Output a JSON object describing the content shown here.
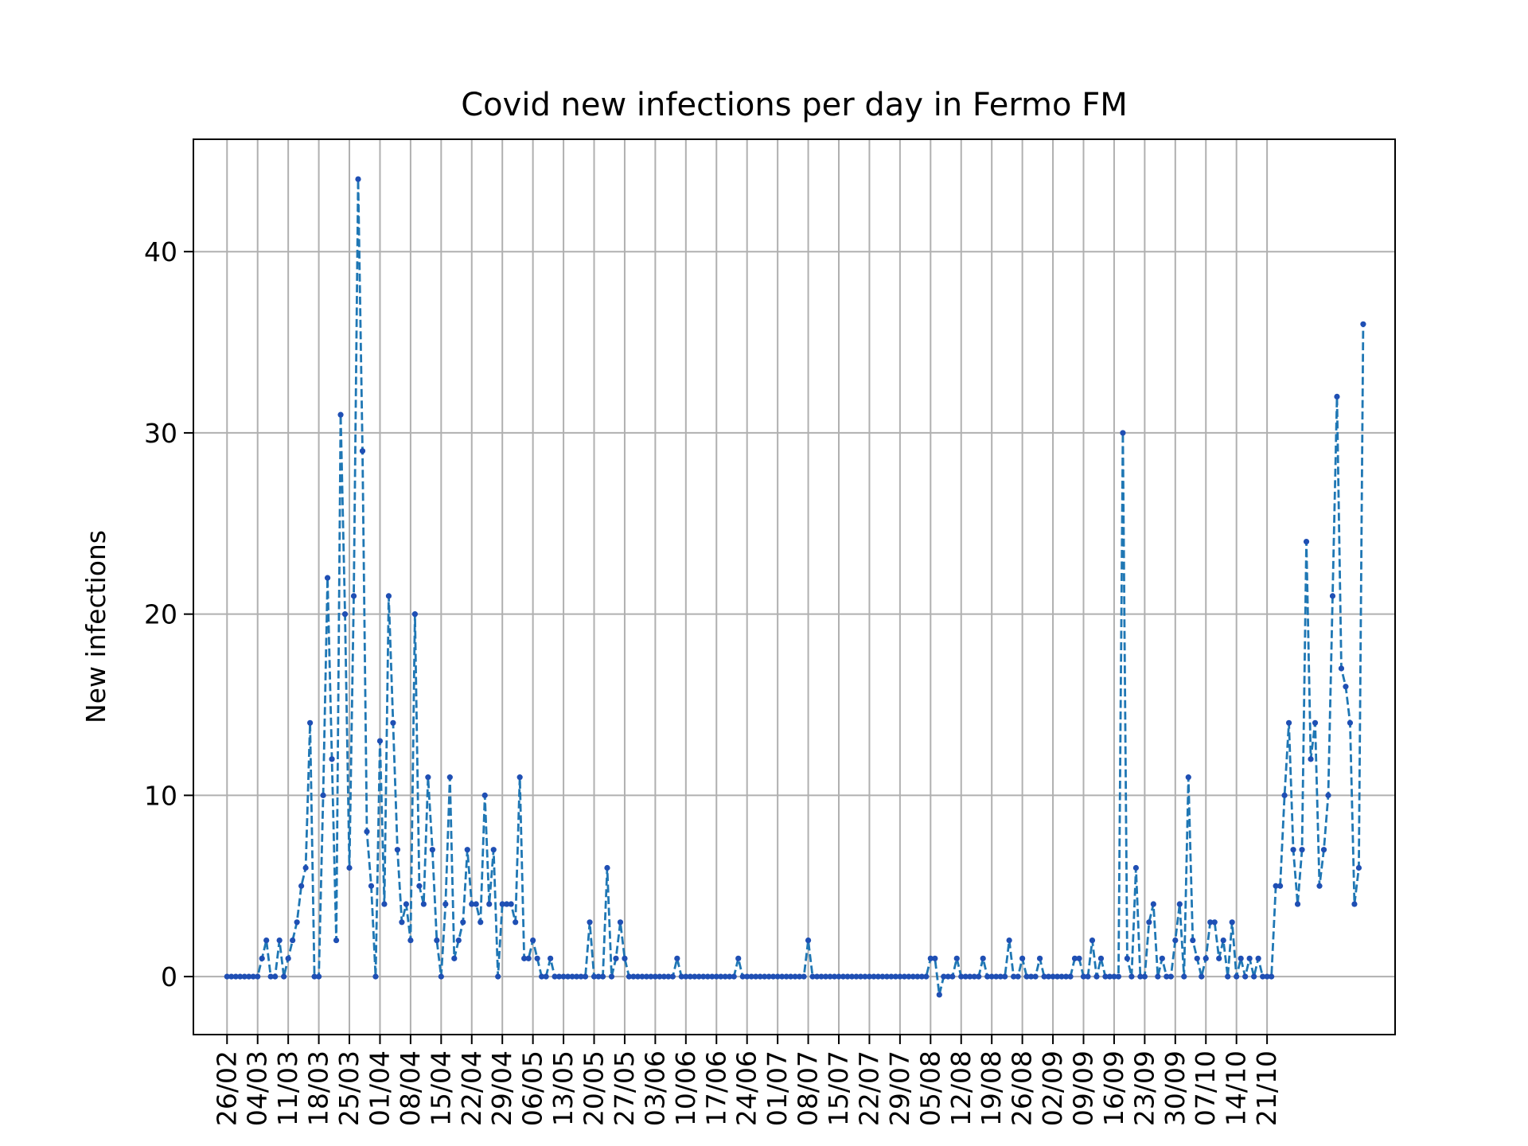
{
  "chart_data": {
    "type": "line",
    "title": "Covid new infections per day in Fermo FM",
    "xlabel": "",
    "ylabel": "New infections",
    "grid": true,
    "legend": "none",
    "line_color": "#1f77b4",
    "marker_color": "#1f4fb4",
    "line_style": "dashed",
    "x_start": "26/02",
    "x_tick_labels": [
      "26/02",
      "04/03",
      "11/03",
      "18/03",
      "25/03",
      "01/04",
      "08/04",
      "15/04",
      "22/04",
      "29/04",
      "06/05",
      "13/05",
      "20/05",
      "27/05",
      "03/06",
      "10/06",
      "17/06",
      "24/06",
      "01/07",
      "08/07",
      "15/07",
      "22/07",
      "29/07",
      "05/08",
      "12/08",
      "19/08",
      "26/08",
      "02/09",
      "09/09",
      "16/09",
      "23/09",
      "30/09",
      "07/10",
      "14/10",
      "21/10"
    ],
    "y_ticks": [
      0,
      10,
      20,
      30,
      40
    ],
    "ylim": [
      -3.2,
      46.2
    ],
    "series": [
      {
        "values": [
          0,
          0,
          0,
          0,
          0,
          0,
          0,
          0,
          1,
          2,
          0,
          0,
          2,
          0,
          1,
          2,
          3,
          5,
          6,
          14,
          0,
          0,
          10,
          22,
          12,
          2,
          31,
          20,
          6,
          21,
          44,
          29,
          8,
          5,
          0,
          13,
          4,
          21,
          14,
          7,
          3,
          4,
          2,
          20,
          5,
          4,
          11,
          7,
          2,
          0,
          4,
          11,
          1,
          2,
          3,
          7,
          4,
          4,
          3,
          10,
          4,
          7,
          0,
          4,
          4,
          4,
          3,
          11,
          1,
          1,
          2,
          1,
          0,
          0,
          1,
          0,
          0,
          0,
          0,
          0,
          0,
          0,
          0,
          3,
          0,
          0,
          0,
          6,
          0,
          1,
          3,
          1,
          0,
          0,
          0,
          0,
          0,
          0,
          0,
          0,
          0,
          0,
          0,
          1,
          0,
          0,
          0,
          0,
          0,
          0,
          0,
          0,
          0,
          0,
          0,
          0,
          0,
          1,
          0,
          0,
          0,
          0,
          0,
          0,
          0,
          0,
          0,
          0,
          0,
          0,
          0,
          0,
          0,
          2,
          0,
          0,
          0,
          0,
          0,
          0,
          0,
          0,
          0,
          0,
          0,
          0,
          0,
          0,
          0,
          0,
          0,
          0,
          0,
          0,
          0,
          0,
          0,
          0,
          0,
          0,
          0,
          1,
          1,
          -1,
          0,
          0,
          0,
          1,
          0,
          0,
          0,
          0,
          0,
          1,
          0,
          0,
          0,
          0,
          0,
          2,
          0,
          0,
          1,
          0,
          0,
          0,
          1,
          0,
          0,
          0,
          0,
          0,
          0,
          0,
          1,
          1,
          0,
          0,
          2,
          0,
          1,
          0,
          0,
          0,
          0,
          30,
          1,
          0,
          6,
          0,
          0,
          3,
          4,
          0,
          1,
          0,
          0,
          2,
          4,
          0,
          11,
          2,
          1,
          0,
          1,
          3,
          3,
          1,
          2,
          0,
          3,
          0,
          1,
          0,
          1,
          0,
          1,
          0,
          0,
          0,
          5,
          5,
          10,
          14,
          7,
          4,
          7,
          24,
          12,
          14,
          5,
          7,
          10,
          21,
          32,
          17,
          16,
          14,
          4,
          6,
          36
        ]
      }
    ]
  }
}
